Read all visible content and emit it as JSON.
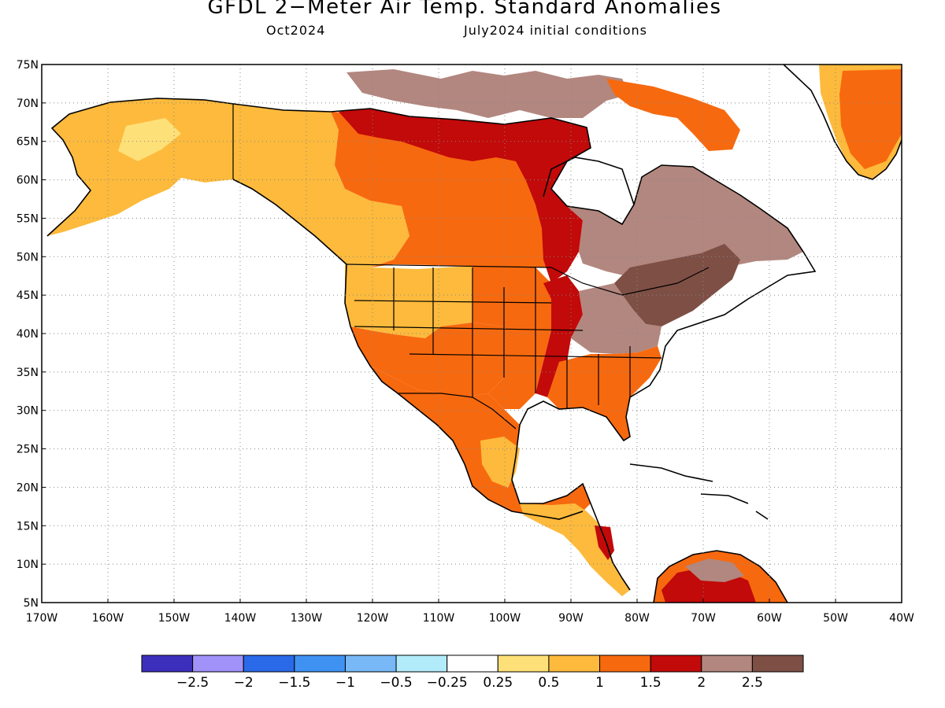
{
  "header": {
    "title": "GFDL 2−Meter Air Temp. Standard Anomalies",
    "subtitle_left": "Oct2024",
    "subtitle_right": "July2024 initial conditions"
  },
  "map": {
    "lat_range": [
      5,
      75
    ],
    "lon_range": [
      -170,
      -40
    ],
    "lat_ticks": [
      "5N",
      "10N",
      "15N",
      "20N",
      "25N",
      "30N",
      "35N",
      "40N",
      "45N",
      "50N",
      "55N",
      "60N",
      "65N",
      "70N",
      "75N"
    ],
    "lon_ticks": [
      "170W",
      "160W",
      "150W",
      "140W",
      "130W",
      "120W",
      "110W",
      "100W",
      "90W",
      "80W",
      "70W",
      "60W",
      "50W",
      "40W"
    ],
    "ocean_color": "#ffffff",
    "land_outline_color": "#000000"
  },
  "colorbar": {
    "colors": [
      "#3c2fbc",
      "#a092f8",
      "#2a6ae8",
      "#3f92f2",
      "#78b8f6",
      "#b2ecfa",
      "#ffffff",
      "#fee079",
      "#fdba3c",
      "#f7690f",
      "#c10a09",
      "#b2877f",
      "#7e4f45"
    ],
    "labels": [
      "−2.5",
      "−2",
      "−1.5",
      "−1",
      "−0.5",
      "−0.25",
      "0.25",
      "0.5",
      "1",
      "1.5",
      "2",
      "2.5"
    ]
  },
  "regions": [
    {
      "name": "alaska",
      "color": "#fdba3c"
    },
    {
      "name": "alaska-inner",
      "color": "#fee079"
    },
    {
      "name": "canada-west",
      "color": "#fdba3c"
    },
    {
      "name": "canada-central",
      "color": "#f7690f"
    },
    {
      "name": "canada-north",
      "color": "#c10a09"
    },
    {
      "name": "arctic-islands",
      "color": "#b2877f"
    },
    {
      "name": "quebec-northeast",
      "color": "#b2877f"
    },
    {
      "name": "northeast-us",
      "color": "#7e4f45"
    },
    {
      "name": "us-west",
      "color": "#fdba3c"
    },
    {
      "name": "us-southwest",
      "color": "#f7690f"
    },
    {
      "name": "us-plains",
      "color": "#f7690f"
    },
    {
      "name": "mississippi-valley",
      "color": "#c10a09"
    },
    {
      "name": "ohio-valley",
      "color": "#b2877f"
    },
    {
      "name": "southeast-us",
      "color": "#f7690f"
    },
    {
      "name": "mexico",
      "color": "#f7690f"
    },
    {
      "name": "mexico-east",
      "color": "#fdba3c"
    },
    {
      "name": "central-america",
      "color": "#fdba3c"
    },
    {
      "name": "south-america",
      "color": "#f7690f"
    },
    {
      "name": "greenland",
      "color": "#fdba3c"
    },
    {
      "name": "greenland-core",
      "color": "#f7690f"
    }
  ]
}
